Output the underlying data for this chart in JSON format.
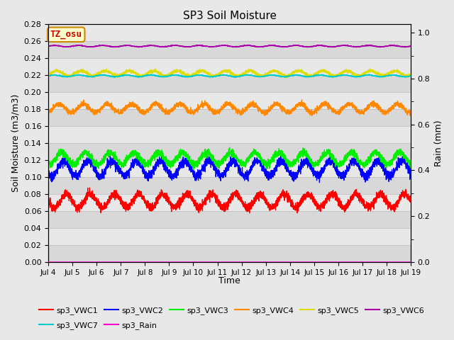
{
  "title": "SP3 Soil Moisture",
  "xlabel": "Time",
  "ylabel_left": "Soil Moisture (m3/m3)",
  "ylabel_right": "Rain (mm)",
  "ylim_left": [
    0.0,
    0.27
  ],
  "ylim_right": [
    0.0,
    1.038
  ],
  "n_points": 3600,
  "series": [
    {
      "name": "sp3_VWC1",
      "color": "#ff0000",
      "base": 0.072,
      "amp": 0.008,
      "period": 1.0,
      "phase": 0.5,
      "axis": "left"
    },
    {
      "name": "sp3_VWC2",
      "color": "#0000ff",
      "base": 0.11,
      "amp": 0.009,
      "period": 1.0,
      "phase": 0.4,
      "axis": "left"
    },
    {
      "name": "sp3_VWC3",
      "color": "#00ee00",
      "base": 0.122,
      "amp": 0.007,
      "period": 1.0,
      "phase": 0.3,
      "axis": "left"
    },
    {
      "name": "sp3_VWC4",
      "color": "#ff8800",
      "base": 0.181,
      "amp": 0.005,
      "period": 1.0,
      "phase": 0.2,
      "axis": "left"
    },
    {
      "name": "sp3_VWC5",
      "color": "#dddd00",
      "base": 0.222,
      "amp": 0.003,
      "period": 1.0,
      "phase": 0.1,
      "axis": "left"
    },
    {
      "name": "sp3_VWC6",
      "color": "#aa00aa",
      "base": 0.254,
      "amp": 0.0008,
      "period": 1.0,
      "phase": 0.0,
      "axis": "left"
    },
    {
      "name": "sp3_VWC7",
      "color": "#00cccc",
      "base": 0.219,
      "amp": 0.001,
      "period": 1.0,
      "phase": 0.0,
      "axis": "left"
    },
    {
      "name": "sp3_Rain",
      "color": "#ff00cc",
      "base": 0.0,
      "amp": 0.0,
      "period": 1.0,
      "phase": 0.0,
      "axis": "right"
    }
  ],
  "legend_box_label": "TZ_osu",
  "legend_box_facecolor": "#ffffcc",
  "legend_box_edgecolor": "#cc8800",
  "bg_dark": "#d8d8d8",
  "bg_light": "#e8e8e8",
  "tick_dates": [
    "Jul 4",
    "Jul 5",
    "Jul 6",
    "Jul 7",
    "Jul 8",
    "Jul 9",
    "Jul 10",
    "Jul 11",
    "Jul 12",
    "Jul 13",
    "Jul 14",
    "Jul 15",
    "Jul 16",
    "Jul 17",
    "Jul 18",
    "Jul 19"
  ]
}
